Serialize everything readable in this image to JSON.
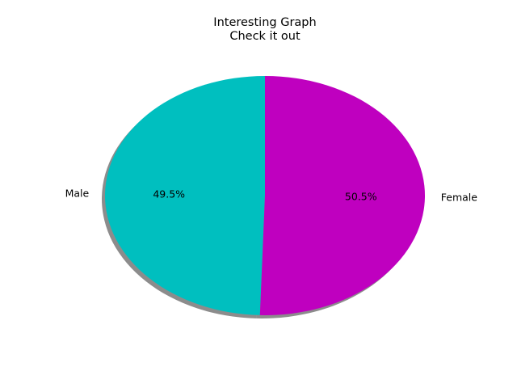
{
  "chart_data": {
    "type": "pie",
    "title": "Interesting Graph",
    "subtitle": "Check it out",
    "slices": [
      {
        "label": "Male",
        "value": 49.5,
        "display": "49.5%",
        "color": "#00bfbf"
      },
      {
        "label": "Female",
        "value": 50.5,
        "display": "50.5%",
        "color": "#bf00bf"
      }
    ],
    "shadow": true,
    "legend": "none"
  }
}
